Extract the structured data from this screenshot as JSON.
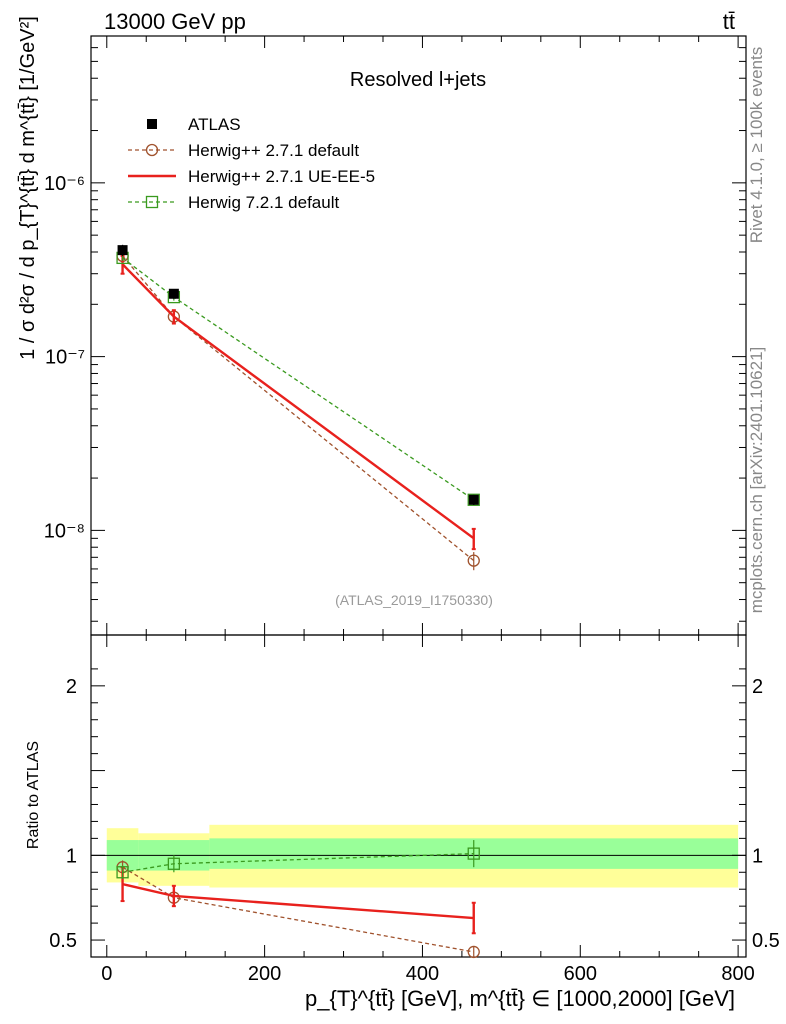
{
  "header": {
    "energy_label": "13000 GeV pp",
    "process_label": "tt̄"
  },
  "side_labels": {
    "rivet": "Rivet 4.1.0, ≥ 100k events",
    "source": "mcplots.cern.ch [arXiv:2401.10621]"
  },
  "chart_data": [
    {
      "type": "line",
      "panel": "main",
      "title": "Resolved l+jets",
      "watermark": "(ATLAS_2019_I1750330)",
      "ylabel": "1 / σ d²σ / d p_{T}^{tt̄} d m^{tt̄} [1/GeV²]",
      "yscale": "log",
      "ylim": [
        2.5e-09,
        7e-06
      ],
      "xlim": [
        -20,
        810
      ],
      "y_ticks": [
        {
          "value": 1e-08,
          "label": "10⁻⁸"
        },
        {
          "value": 1e-07,
          "label": "10⁻⁷"
        },
        {
          "value": 1e-06,
          "label": "10⁻⁶"
        }
      ],
      "legend_position": "top-left",
      "series": [
        {
          "name": "ATLAS",
          "style": "data",
          "color": "#000000",
          "x": [
            20,
            85,
            465
          ],
          "y": [
            4.1e-07,
            2.3e-07,
            1.5e-08
          ],
          "err": [
            3e-08,
            1.5e-08,
            1e-09
          ]
        },
        {
          "name": "Herwig++ 2.7.1 default",
          "style": "circle-dashed",
          "color": "#a0522d",
          "x": [
            20,
            85,
            465
          ],
          "y": [
            3.8e-07,
            1.7e-07,
            6.7e-09
          ],
          "err": [
            1.5e-08,
            1e-08,
            8e-10
          ]
        },
        {
          "name": "Herwig++ 2.7.1 UE-EE-5",
          "style": "solid",
          "color": "#e8211d",
          "x": [
            20,
            85,
            465
          ],
          "y": [
            3.4e-07,
            1.7e-07,
            9e-09
          ],
          "err": [
            4e-08,
            1.5e-08,
            1.2e-09
          ]
        },
        {
          "name": "Herwig 7.2.1 default",
          "style": "square-dashed",
          "color": "#3a9a1f",
          "x": [
            20,
            85,
            465
          ],
          "y": [
            3.7e-07,
            2.2e-07,
            1.5e-08
          ],
          "err": [
            1.5e-08,
            1e-08,
            1e-09
          ]
        }
      ]
    },
    {
      "type": "line",
      "panel": "ratio",
      "ylabel": "Ratio to ATLAS",
      "xlabel": "p_{T}^{tt̄} [GeV], m^{tt̄} ∈ [1000,2000] [GeV]",
      "ylim": [
        0.4,
        2.3
      ],
      "xlim": [
        -20,
        810
      ],
      "x_ticks": [
        0,
        200,
        400,
        600,
        800
      ],
      "y_ticks": [
        {
          "value": 0.5,
          "label": "0.5"
        },
        {
          "value": 1,
          "label": "1"
        },
        {
          "value": 2,
          "label": "2"
        }
      ],
      "bands": [
        {
          "name": "total",
          "color": "#ffff99",
          "edges": [
            0,
            40,
            130,
            800
          ],
          "low": [
            0.84,
            0.82,
            0.81
          ],
          "high": [
            1.16,
            1.13,
            1.18
          ]
        },
        {
          "name": "stat",
          "color": "#99ff99",
          "edges": [
            0,
            40,
            130,
            800
          ],
          "low": [
            0.91,
            0.91,
            0.92
          ],
          "high": [
            1.09,
            1.09,
            1.1
          ]
        }
      ],
      "series": [
        {
          "name": "Herwig++ 2.7.1 default",
          "style": "circle-dashed",
          "color": "#a0522d",
          "x": [
            20,
            85,
            465
          ],
          "y": [
            0.93,
            0.75,
            0.43
          ],
          "err": [
            0.04,
            0.04,
            0.03
          ]
        },
        {
          "name": "Herwig++ 2.7.1 UE-EE-5",
          "style": "solid",
          "color": "#e8211d",
          "x": [
            20,
            85,
            465
          ],
          "y": [
            0.83,
            0.76,
            0.63
          ],
          "err": [
            0.1,
            0.06,
            0.09
          ]
        },
        {
          "name": "Herwig 7.2.1 default",
          "style": "square-dashed",
          "color": "#3a9a1f",
          "x": [
            20,
            85,
            465
          ],
          "y": [
            0.9,
            0.95,
            1.01
          ],
          "err": [
            0.04,
            0.05,
            0.08
          ]
        }
      ]
    }
  ]
}
